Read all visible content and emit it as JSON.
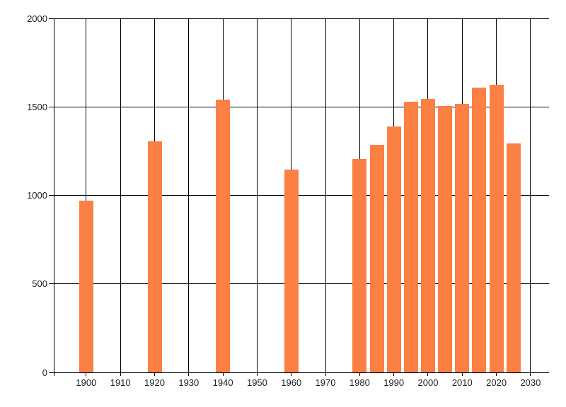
{
  "chart_data": {
    "type": "bar",
    "title": "",
    "xlabel": "",
    "ylabel": "",
    "x": [
      1900,
      1920,
      1940,
      1960,
      1980,
      1985,
      1990,
      1995,
      2000,
      2005,
      2010,
      2015,
      2020,
      2025
    ],
    "values": [
      970,
      1305,
      1540,
      1145,
      1205,
      1285,
      1390,
      1530,
      1545,
      1505,
      1515,
      1610,
      1625,
      1295
    ],
    "x_ticks": [
      {
        "year": 1900,
        "label": "1900"
      },
      {
        "year": 1910,
        "label": "1910"
      },
      {
        "year": 1920,
        "label": "1920"
      },
      {
        "year": 1930,
        "label": "1930"
      },
      {
        "year": 1940,
        "label": "1940"
      },
      {
        "year": 1950,
        "label": "1950"
      },
      {
        "year": 1960,
        "label": "1960"
      },
      {
        "year": 1970,
        "label": "1970"
      },
      {
        "year": 1980,
        "label": "1980"
      },
      {
        "year": 1990,
        "label": "1990"
      },
      {
        "year": 2000,
        "label": "2000"
      },
      {
        "year": 2010,
        "label": "2010"
      },
      {
        "year": 2020,
        "label": "2020"
      },
      {
        "year": 2030,
        "label": "2030"
      }
    ],
    "y_ticks": [
      {
        "value": 0,
        "label": "0"
      },
      {
        "value": 500,
        "label": "500"
      },
      {
        "value": 1000,
        "label": "1000"
      },
      {
        "value": 1500,
        "label": "1500"
      },
      {
        "value": 2000,
        "label": "2000"
      }
    ],
    "xlim": [
      1890.5,
      2035.4
    ],
    "ylim": [
      0,
      2000
    ],
    "grid": true,
    "legend": false,
    "colors": {
      "bar": "#fc8044",
      "grid": "#000000",
      "text": "#202020",
      "background": "#ffffff"
    }
  }
}
